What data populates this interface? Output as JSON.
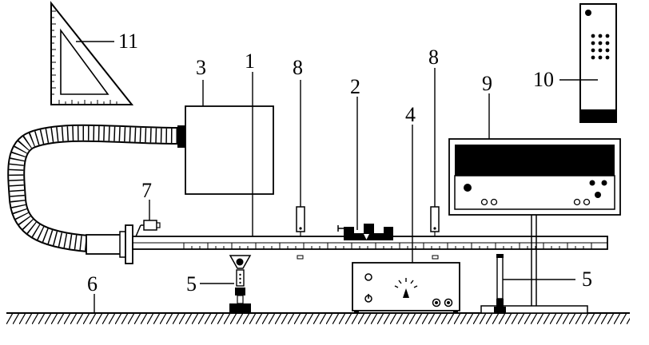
{
  "labels": {
    "l1": "1",
    "l2": "2",
    "l3": "3",
    "l4": "4",
    "l5a": "5",
    "l5b": "5",
    "l6": "6",
    "l7": "7",
    "l8a": "8",
    "l8b": "8",
    "l9": "9",
    "l10": "10",
    "l11": "11"
  }
}
